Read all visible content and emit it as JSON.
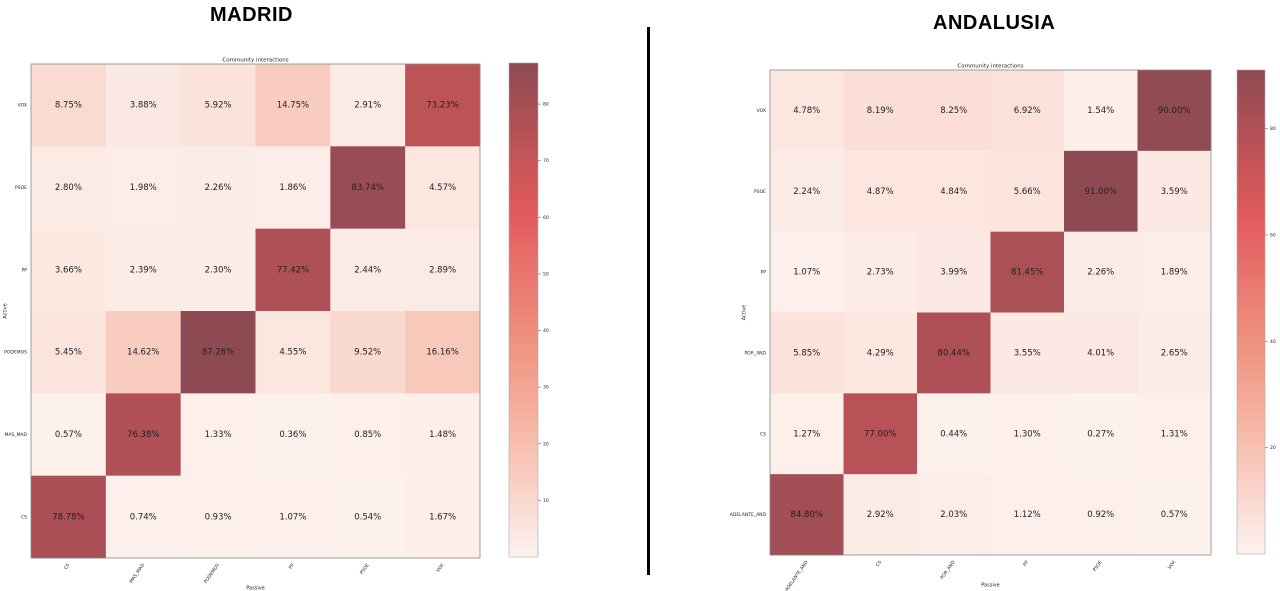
{
  "regions": {
    "madrid": {
      "name": "MADRID"
    },
    "andalusia": {
      "name": "ANDALUSIA"
    }
  },
  "colors": {
    "low": "#fdf2ee",
    "mid": "#f4a38e",
    "high": "#e25a5b",
    "max": "#8e4a52",
    "divider": "#000000"
  },
  "chart_data": [
    {
      "type": "heatmap",
      "region": "MADRID",
      "title": "Community interactions",
      "xlabel": "Passive",
      "ylabel": "Active",
      "rows": [
        "VOX",
        "PSOE",
        "PP",
        "PODEMOS",
        "MAS_MAD",
        "CS"
      ],
      "cols": [
        "CS",
        "MAS_MAD",
        "PODEMOS",
        "PP",
        "PSOE",
        "VOX"
      ],
      "values": [
        [
          8.75,
          3.88,
          5.92,
          14.75,
          2.91,
          73.23
        ],
        [
          2.8,
          1.98,
          2.26,
          1.86,
          83.74,
          4.57
        ],
        [
          3.66,
          2.39,
          2.3,
          77.42,
          2.44,
          2.89
        ],
        [
          5.45,
          14.62,
          87.26,
          4.55,
          9.52,
          16.16
        ],
        [
          0.57,
          76.38,
          1.33,
          0.36,
          0.85,
          1.48
        ],
        [
          78.78,
          0.74,
          0.93,
          1.07,
          0.54,
          1.67
        ]
      ],
      "colorbar": {
        "min": 0,
        "max": 87.26,
        "ticks": [
          10,
          20,
          30,
          40,
          50,
          60,
          70,
          80
        ]
      }
    },
    {
      "type": "heatmap",
      "region": "ANDALUSIA",
      "title": "Community interactions",
      "xlabel": "Passive",
      "ylabel": "Active",
      "rows": [
        "VOX",
        "PSOE",
        "PP",
        "POR_AND",
        "CS",
        "ADELANTE_AND"
      ],
      "cols": [
        "ADELANTE_AND",
        "CS",
        "POR_AND",
        "PP",
        "PSOE",
        "VOX"
      ],
      "values": [
        [
          4.78,
          8.19,
          8.25,
          6.92,
          1.54,
          90.0
        ],
        [
          2.24,
          4.87,
          4.84,
          5.66,
          91.0,
          3.59
        ],
        [
          1.07,
          2.73,
          3.99,
          81.45,
          2.26,
          1.89
        ],
        [
          5.85,
          4.29,
          80.44,
          3.55,
          4.01,
          2.65
        ],
        [
          1.27,
          77.0,
          0.44,
          1.3,
          0.27,
          1.31
        ],
        [
          84.8,
          2.92,
          2.03,
          1.12,
          0.92,
          0.57
        ]
      ],
      "colorbar": {
        "min": 0,
        "max": 91.0,
        "ticks": [
          20,
          40,
          60,
          80
        ]
      }
    }
  ]
}
